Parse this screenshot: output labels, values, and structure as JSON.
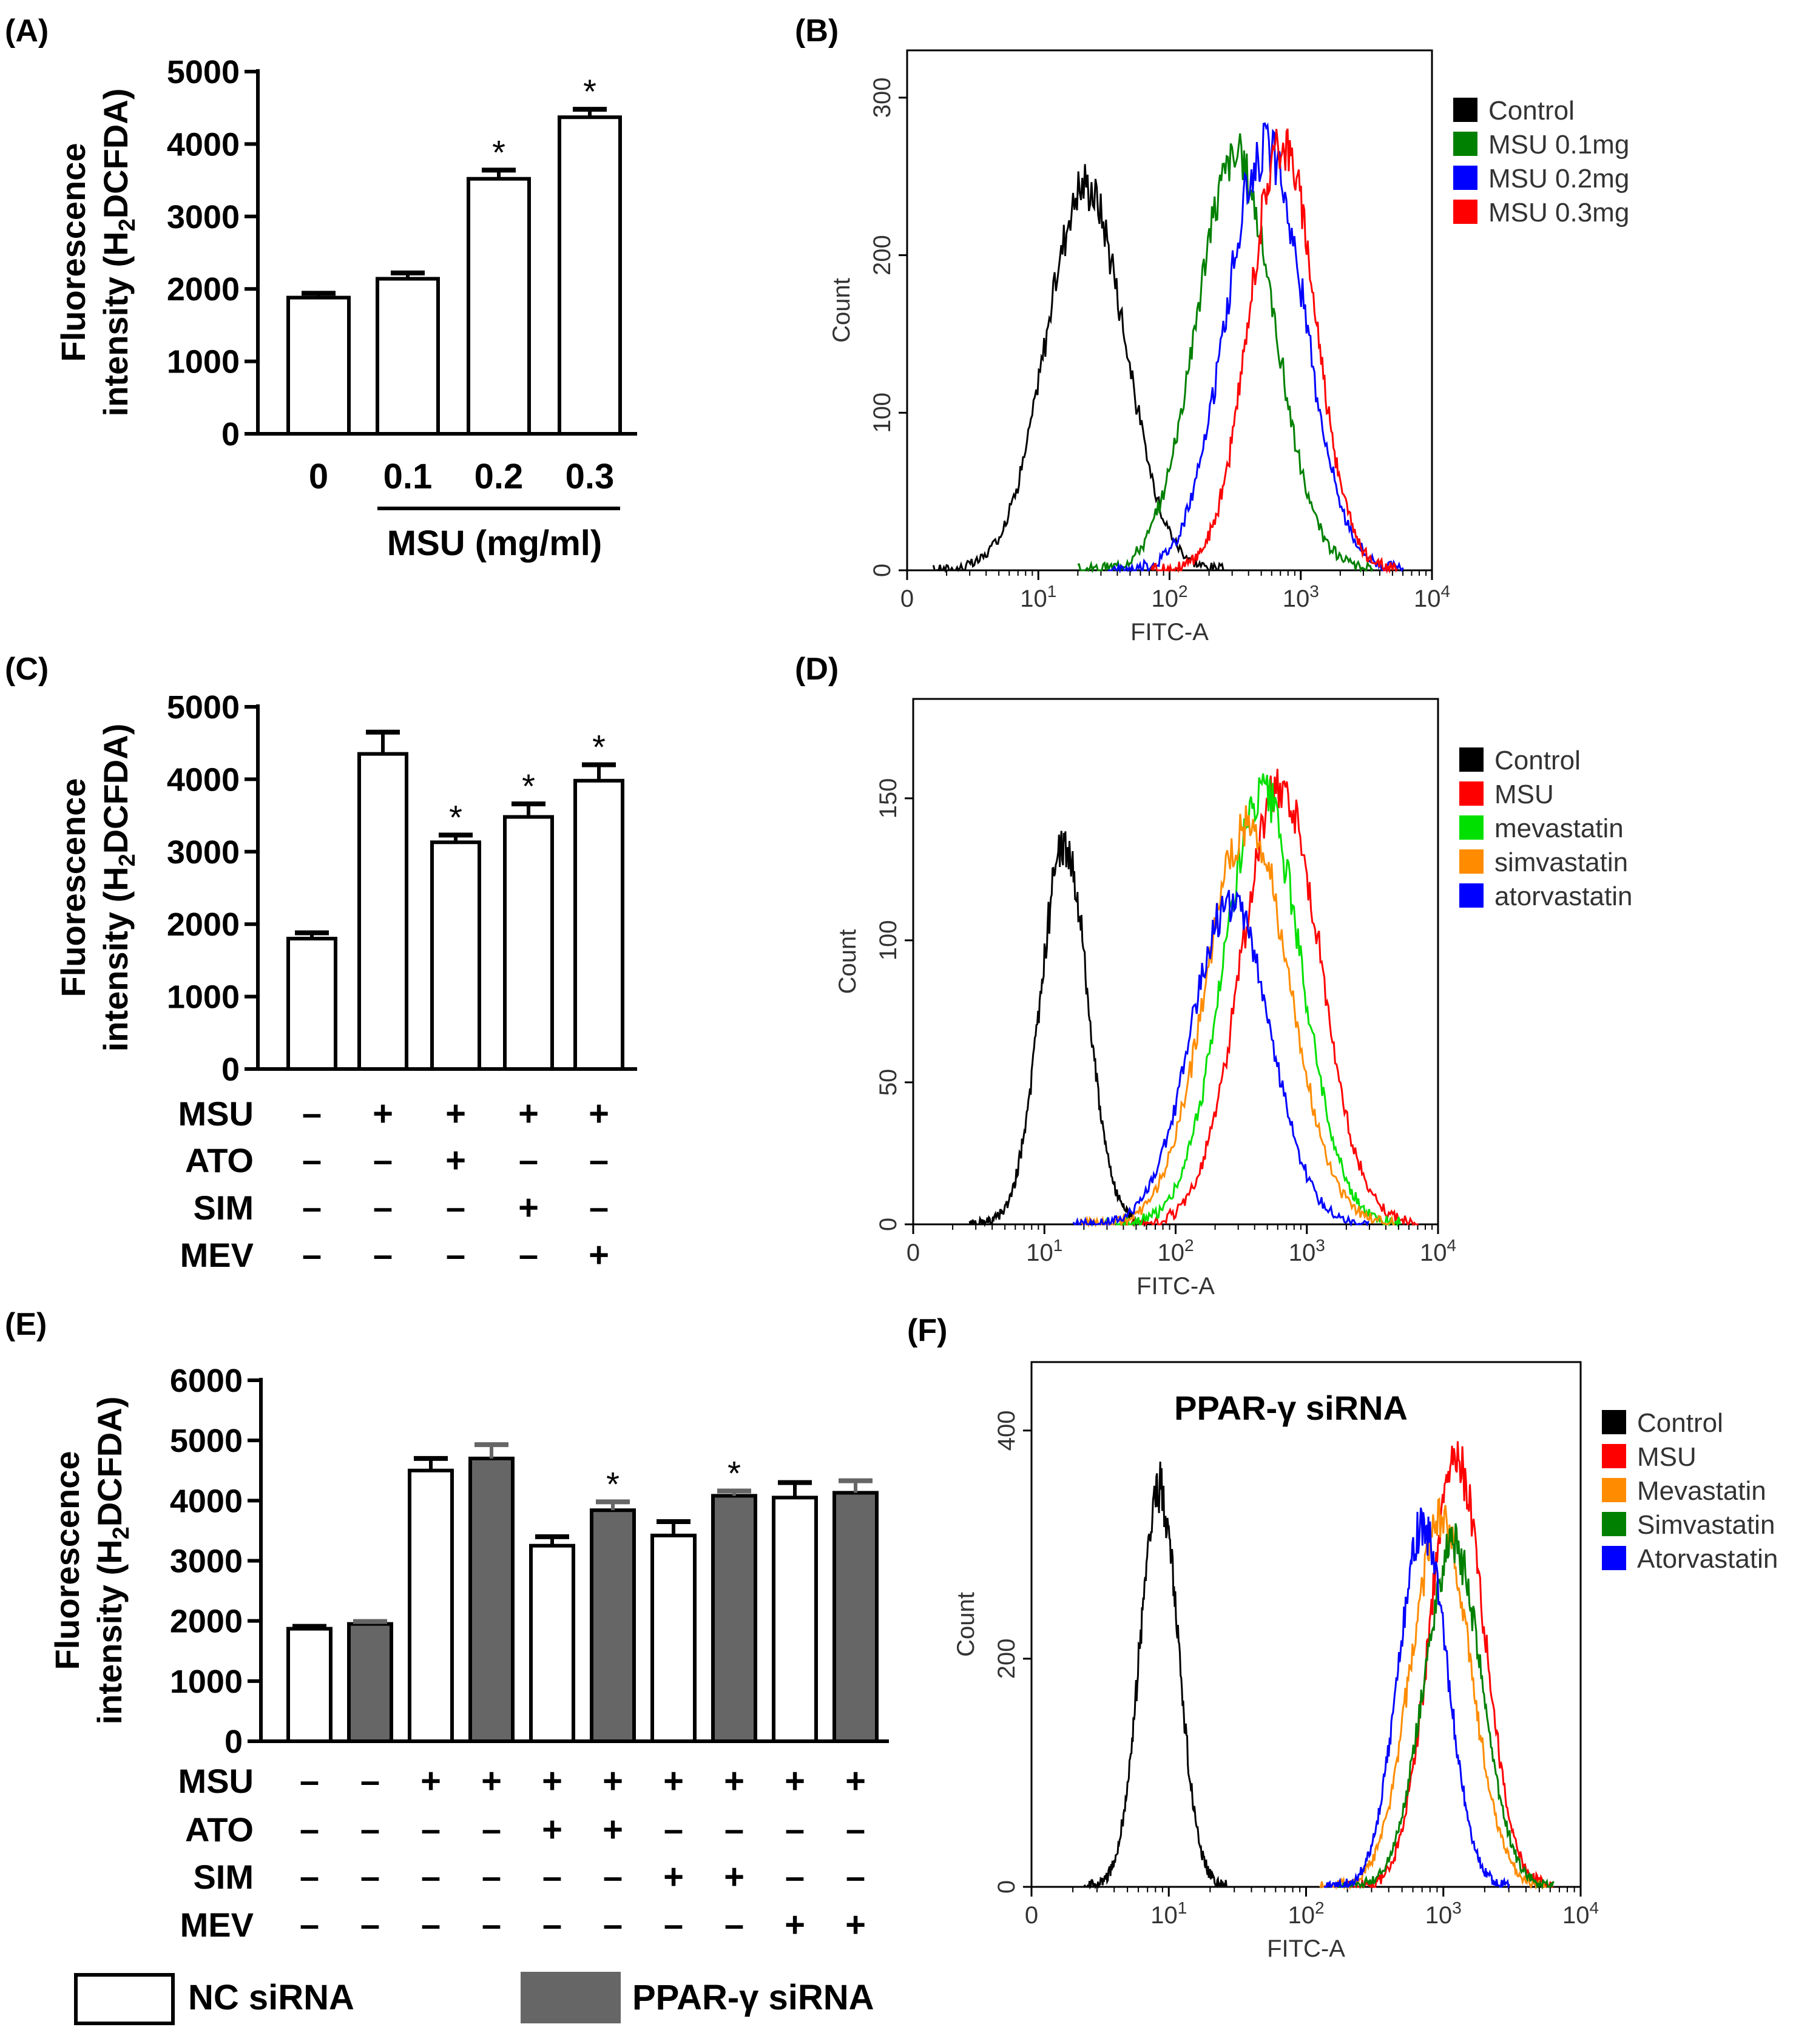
{
  "panels": {
    "A": {
      "label": "(A)"
    },
    "B": {
      "label": "(B)"
    },
    "C": {
      "label": "(C)"
    },
    "D": {
      "label": "(D)"
    },
    "E": {
      "label": "(E)"
    },
    "F": {
      "label": "(F)"
    }
  },
  "colors": {
    "black": "#000000",
    "green_dark": "#008000",
    "blue": "#0000ff",
    "red": "#ff0000",
    "green_bright": "#00e000",
    "orange": "#ff8c00",
    "gray_bar": "#666666"
  },
  "chart_data": [
    {
      "id": "A",
      "type": "bar",
      "ylabel": "Fluorescence intensity (H2DCFDA)",
      "ylabel_line1": "Fluorescence",
      "ylabel_line2_pre": "intensity (H",
      "ylabel_line2_sub": "2",
      "ylabel_line2_post": "DCFDA)",
      "ylim": [
        0,
        5000
      ],
      "yticks": [
        "0",
        "1000",
        "2000",
        "3000",
        "4000",
        "5000"
      ],
      "categories": [
        "0",
        "0.1",
        "0.2",
        "0.3"
      ],
      "xlabel": "MSU (mg/ml)",
      "values": [
        1880,
        2140,
        3520,
        4370
      ],
      "errors": [
        60,
        80,
        120,
        110
      ],
      "significance": [
        "",
        "",
        "*",
        "*"
      ]
    },
    {
      "id": "B",
      "type": "line",
      "xlabel": "FITC-A",
      "ylabel": "Count",
      "xscale": "log",
      "xticks": [
        "0",
        "10",
        "10",
        "10",
        "10"
      ],
      "xtick_exponents": [
        "",
        "1",
        "2",
        "3",
        "4"
      ],
      "yticks": [
        "0",
        "100",
        "200",
        "300"
      ],
      "ylim": [
        0,
        330
      ],
      "series": [
        {
          "name": "Control",
          "color": "#000000",
          "peak_log": 1.36,
          "peak": 245,
          "width": 0.3
        },
        {
          "name": "MSU 0.1mg",
          "color": "#008000",
          "peak_log": 2.5,
          "peak": 262,
          "width": 0.3
        },
        {
          "name": "MSU 0.2mg",
          "color": "#0000ff",
          "peak_log": 2.73,
          "peak": 268,
          "width": 0.3
        },
        {
          "name": "MSU 0.3mg",
          "color": "#ff0000",
          "peak_log": 2.86,
          "peak": 272,
          "width": 0.25
        }
      ]
    },
    {
      "id": "C",
      "type": "bar",
      "ylabel": "Fluorescence intensity (H2DCFDA)",
      "ylim": [
        0,
        5000
      ],
      "yticks": [
        "0",
        "1000",
        "2000",
        "3000",
        "4000",
        "5000"
      ],
      "values": [
        1800,
        4350,
        3130,
        3480,
        3980
      ],
      "errors": [
        80,
        300,
        100,
        180,
        220
      ],
      "significance": [
        "",
        "",
        "*",
        "*",
        "*"
      ],
      "treatment_rows": [
        {
          "name": "MSU",
          "marks": [
            "–",
            "+",
            "+",
            "+",
            "+"
          ]
        },
        {
          "name": "ATO",
          "marks": [
            "–",
            "–",
            "+",
            "–",
            "–"
          ]
        },
        {
          "name": "SIM",
          "marks": [
            "–",
            "–",
            "–",
            "+",
            "–"
          ]
        },
        {
          "name": "MEV",
          "marks": [
            "–",
            "–",
            "–",
            "–",
            "+"
          ]
        }
      ]
    },
    {
      "id": "D",
      "type": "line",
      "xlabel": "FITC-A",
      "ylabel": "Count",
      "xscale": "log",
      "xticks": [
        "0",
        "10",
        "10",
        "10",
        "10"
      ],
      "xtick_exponents": [
        "",
        "1",
        "2",
        "3",
        "4"
      ],
      "yticks": [
        "0",
        "50",
        "100",
        "150"
      ],
      "ylim": [
        0,
        185
      ],
      "series": [
        {
          "name": "Control",
          "color": "#000000",
          "peak_log": 1.15,
          "peak": 133,
          "width": 0.18
        },
        {
          "name": "MSU",
          "color": "#ff0000",
          "peak_log": 2.8,
          "peak": 155,
          "width": 0.3
        },
        {
          "name": "mevastatin",
          "color": "#00e000",
          "peak_log": 2.66,
          "peak": 150,
          "width": 0.3
        },
        {
          "name": "simvastatin",
          "color": "#ff8c00",
          "peak_log": 2.55,
          "peak": 140,
          "width": 0.32
        },
        {
          "name": "atorvastatin",
          "color": "#0000ff",
          "peak_log": 2.42,
          "peak": 113,
          "width": 0.3
        }
      ]
    },
    {
      "id": "E",
      "type": "bar",
      "ylabel": "Fluorescence intensity (H2DCFDA)",
      "ylim": [
        0,
        6000
      ],
      "yticks": [
        "0",
        "1000",
        "2000",
        "3000",
        "4000",
        "5000",
        "6000"
      ],
      "series": [
        {
          "name": "NC siRNA",
          "color": "#ffffff",
          "values": [
            1870,
            4500,
            3250,
            3420,
            4050
          ],
          "errors": [
            40,
            200,
            150,
            230,
            250
          ]
        },
        {
          "name": "PPAR-γ siRNA",
          "color": "#666666",
          "values": [
            1950,
            4700,
            3840,
            4080,
            4130
          ],
          "errors": [
            40,
            230,
            140,
            80,
            200
          ]
        }
      ],
      "significance": [
        "",
        "",
        "",
        "",
        "",
        "*",
        "",
        "*",
        "",
        ""
      ],
      "treatment_rows": [
        {
          "name": "MSU",
          "marks": [
            "–",
            "–",
            "+",
            "+",
            "+",
            "+",
            "+",
            "+",
            "+",
            "+"
          ]
        },
        {
          "name": "ATO",
          "marks": [
            "–",
            "–",
            "–",
            "–",
            "+",
            "+",
            "–",
            "–",
            "–",
            "–"
          ]
        },
        {
          "name": "SIM",
          "marks": [
            "–",
            "–",
            "–",
            "–",
            "–",
            "–",
            "+",
            "+",
            "–",
            "–"
          ]
        },
        {
          "name": "MEV",
          "marks": [
            "–",
            "–",
            "–",
            "–",
            "–",
            "–",
            "–",
            "–",
            "+",
            "+"
          ]
        }
      ],
      "legend": [
        "NC siRNA",
        "PPAR-γ siRNA"
      ]
    },
    {
      "id": "F",
      "type": "line",
      "title": "PPAR-γ siRNA",
      "xlabel": "FITC-A",
      "ylabel": "Count",
      "xscale": "log",
      "xticks": [
        "0",
        "10",
        "10",
        "10",
        "10"
      ],
      "xtick_exponents": [
        "",
        "1",
        "2",
        "3",
        "4"
      ],
      "yticks": [
        "0",
        "200",
        "400"
      ],
      "ylim": [
        0,
        460
      ],
      "series": [
        {
          "name": "Control",
          "color": "#000000",
          "peak_log": 0.93,
          "peak": 350,
          "width": 0.14
        },
        {
          "name": "MSU",
          "color": "#ff0000",
          "peak_log": 3.1,
          "peak": 375,
          "width": 0.2
        },
        {
          "name": "Mevastatin",
          "color": "#ff8c00",
          "peak_log": 2.98,
          "peak": 320,
          "width": 0.22
        },
        {
          "name": "Simvastatin",
          "color": "#008000",
          "peak_log": 3.07,
          "peak": 300,
          "width": 0.21
        },
        {
          "name": "Atorvastatin",
          "color": "#0000ff",
          "peak_log": 2.85,
          "peak": 315,
          "width": 0.18
        }
      ]
    }
  ]
}
